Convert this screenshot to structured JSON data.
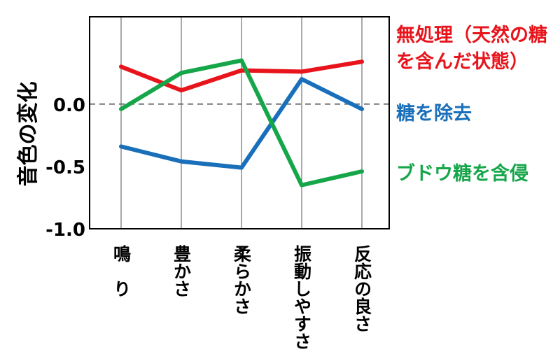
{
  "chart_data": {
    "type": "line",
    "title": "",
    "xlabel": "",
    "ylabel": "音色の変化",
    "categories": [
      "鳴　り",
      "豊かさ",
      "柔らかさ",
      "振動しやすさ",
      "反応の良さ"
    ],
    "ylim": [
      -1.0,
      0.7
    ],
    "yticks": [
      "0.0",
      "-0.5",
      "-1.0"
    ],
    "ytick_values": [
      0.0,
      -0.5,
      -1.0
    ],
    "grid": "vertical",
    "reference_line": 0.0,
    "series": [
      {
        "name": "無処理（天然の糖を含んだ状態）",
        "color": "#e8141c",
        "values": [
          0.3,
          0.11,
          0.27,
          0.26,
          0.34
        ]
      },
      {
        "name": "糖を除去",
        "color": "#1a6fba",
        "values": [
          -0.34,
          -0.46,
          -0.51,
          0.2,
          -0.04
        ]
      },
      {
        "name": "ブドウ糖を含侵",
        "color": "#16a64a",
        "values": [
          -0.04,
          0.25,
          0.35,
          -0.65,
          -0.54
        ]
      }
    ],
    "legend_position": "right"
  }
}
